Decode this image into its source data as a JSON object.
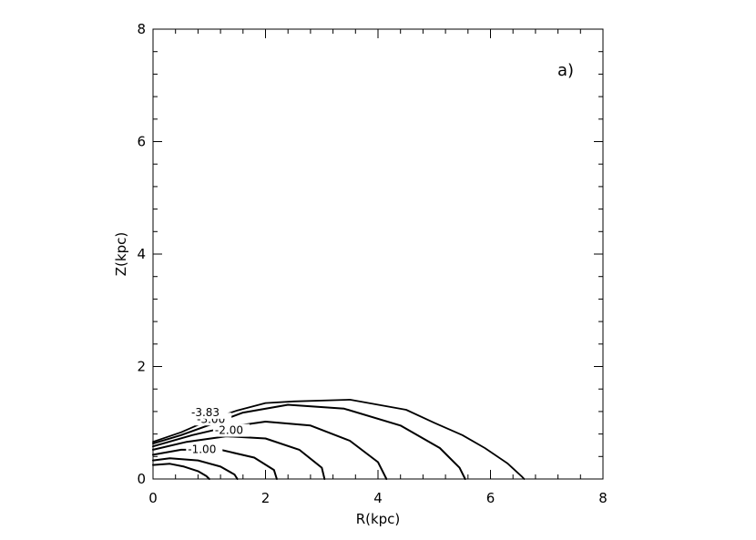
{
  "chart_data": {
    "type": "contour",
    "panel_label": "a)",
    "xlabel": "R(kpc)",
    "ylabel": "Z(kpc)",
    "xlim": [
      0,
      8
    ],
    "ylim": [
      0,
      8
    ],
    "xticks": [
      "0",
      "2",
      "4",
      "6",
      "8"
    ],
    "yticks": [
      "0",
      "2",
      "4",
      "6",
      "8"
    ],
    "grid": false,
    "contours": [
      {
        "level": "",
        "points": [
          [
            0,
            0.25
          ],
          [
            0.3,
            0.27
          ],
          [
            0.55,
            0.22
          ],
          [
            0.8,
            0.14
          ],
          [
            0.95,
            0.05
          ],
          [
            1.0,
            0
          ]
        ]
      },
      {
        "level": "-1.00",
        "label_at": [
          0.62,
          0.46
        ],
        "points": [
          [
            0,
            0.33
          ],
          [
            0.3,
            0.37
          ],
          [
            0.8,
            0.33
          ],
          [
            1.2,
            0.22
          ],
          [
            1.45,
            0.08
          ],
          [
            1.5,
            0
          ]
        ]
      },
      {
        "level": "",
        "points": [
          [
            0,
            0.43
          ],
          [
            0.5,
            0.52
          ],
          [
            1.2,
            0.52
          ],
          [
            1.8,
            0.38
          ],
          [
            2.15,
            0.16
          ],
          [
            2.2,
            0
          ]
        ]
      },
      {
        "level": "-2.00",
        "label_at": [
          1.1,
          0.8
        ],
        "points": [
          [
            0,
            0.52
          ],
          [
            0.6,
            0.66
          ],
          [
            1.3,
            0.76
          ],
          [
            2.0,
            0.72
          ],
          [
            2.6,
            0.52
          ],
          [
            3.0,
            0.2
          ],
          [
            3.05,
            0
          ]
        ]
      },
      {
        "level": "",
        "points": [
          [
            0,
            0.58
          ],
          [
            0.7,
            0.78
          ],
          [
            1.3,
            0.92
          ],
          [
            2.0,
            1.02
          ],
          [
            2.8,
            0.95
          ],
          [
            3.5,
            0.68
          ],
          [
            4.0,
            0.3
          ],
          [
            4.15,
            0
          ]
        ]
      },
      {
        "level": "-3.00",
        "label_at": [
          0.78,
          1.0
        ],
        "points": [
          [
            0,
            0.63
          ],
          [
            0.5,
            0.78
          ],
          [
            1.0,
            0.96
          ],
          [
            1.6,
            1.18
          ],
          [
            2.4,
            1.32
          ],
          [
            3.4,
            1.25
          ],
          [
            4.4,
            0.95
          ],
          [
            5.1,
            0.55
          ],
          [
            5.45,
            0.2
          ],
          [
            5.55,
            0
          ]
        ]
      },
      {
        "level": "-3.83",
        "label_at": [
          0.68,
          1.12
        ],
        "points": [
          [
            0,
            0.66
          ],
          [
            0.5,
            0.83
          ],
          [
            1.0,
            1.05
          ],
          [
            1.5,
            1.22
          ],
          [
            2.0,
            1.35
          ],
          [
            2.5,
            1.38
          ],
          [
            3.5,
            1.41
          ],
          [
            4.5,
            1.23
          ],
          [
            5.0,
            1.0
          ],
          [
            5.5,
            0.78
          ],
          [
            5.9,
            0.55
          ],
          [
            6.3,
            0.28
          ],
          [
            6.55,
            0.05
          ],
          [
            6.6,
            0
          ]
        ]
      }
    ]
  }
}
